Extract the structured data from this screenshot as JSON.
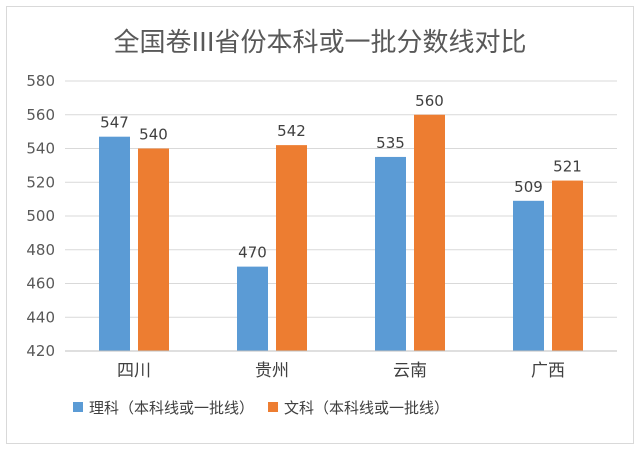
{
  "chart_data": {
    "type": "bar",
    "title": "全国卷III省份本科或一批分数线对比",
    "categories": [
      "四川",
      "贵州",
      "云南",
      "广西"
    ],
    "series": [
      {
        "name": "理科（本科线或一批线）",
        "color": "#5b9bd5",
        "values": [
          547,
          470,
          535,
          509
        ]
      },
      {
        "name": "文科（本科线或一批线）",
        "color": "#ed7d31",
        "values": [
          540,
          542,
          560,
          521
        ]
      }
    ],
    "ylim": [
      420,
      580
    ],
    "yticks": [
      420,
      440,
      460,
      480,
      500,
      520,
      540,
      560,
      580
    ],
    "grid": true,
    "legend_position": "bottom-left",
    "data_labels": true
  }
}
